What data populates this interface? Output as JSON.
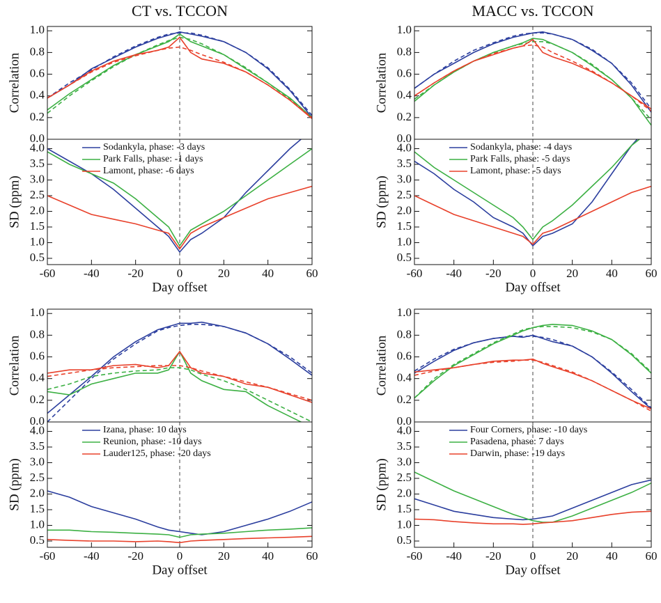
{
  "chart_data": [
    {
      "type": "line",
      "title": "CT vs. TCCON",
      "ylabel": "Correlation",
      "x": [
        -60,
        -50,
        -40,
        -30,
        -20,
        -10,
        -5,
        0,
        5,
        10,
        20,
        30,
        40,
        50,
        60
      ],
      "xlim": [
        -60,
        60
      ],
      "ylim": [
        0,
        1.04
      ],
      "yticks": [
        {
          "value": 0,
          "label": "0.0"
        },
        0.2,
        0.4,
        0.6,
        0.8,
        {
          "value": 1,
          "label": "1.0"
        }
      ],
      "series": [
        {
          "color": "#2b3e9e",
          "values": [
            0.38,
            0.5,
            0.65,
            0.75,
            0.85,
            0.93,
            0.96,
            0.99,
            0.97,
            0.95,
            0.9,
            0.8,
            0.65,
            0.45,
            0.2
          ]
        },
        {
          "color": "#2b3e9e",
          "dash": true,
          "values": [
            0.38,
            0.52,
            0.64,
            0.76,
            0.86,
            0.94,
            0.97,
            0.98,
            0.98,
            0.96,
            0.9,
            0.8,
            0.66,
            0.46,
            0.22
          ]
        },
        {
          "color": "#3cb043",
          "values": [
            0.27,
            0.42,
            0.55,
            0.68,
            0.78,
            0.86,
            0.9,
            0.97,
            0.9,
            0.86,
            0.78,
            0.65,
            0.52,
            0.38,
            0.2
          ]
        },
        {
          "color": "#3cb043",
          "dash": true,
          "values": [
            0.24,
            0.4,
            0.54,
            0.67,
            0.78,
            0.87,
            0.91,
            0.94,
            0.92,
            0.88,
            0.78,
            0.66,
            0.52,
            0.37,
            0.2
          ]
        },
        {
          "color": "#e8402a",
          "values": [
            0.38,
            0.5,
            0.63,
            0.72,
            0.78,
            0.82,
            0.85,
            0.94,
            0.8,
            0.74,
            0.7,
            0.62,
            0.5,
            0.36,
            0.19
          ]
        },
        {
          "color": "#e8402a",
          "dash": true,
          "values": [
            0.38,
            0.5,
            0.62,
            0.71,
            0.77,
            0.82,
            0.84,
            0.85,
            0.82,
            0.78,
            0.71,
            0.62,
            0.5,
            0.36,
            0.2
          ]
        }
      ]
    },
    {
      "type": "line",
      "ylabel": "SD (ppm)",
      "xlabel": "Day offset",
      "legend": "upper left",
      "x": [
        -60,
        -50,
        -40,
        -30,
        -20,
        -10,
        -5,
        0,
        5,
        10,
        20,
        30,
        40,
        50,
        60
      ],
      "xlim": [
        -60,
        60
      ],
      "xticks": [
        -60,
        -40,
        -20,
        0,
        20,
        40,
        60
      ],
      "ylim": [
        0.3,
        4.3
      ],
      "yticks": [
        0.5,
        {
          "value": 1,
          "label": "1.0"
        },
        1.5,
        {
          "value": 2,
          "label": "2.0"
        },
        2.5,
        {
          "value": 3,
          "label": "3.0"
        },
        3.5,
        {
          "value": 4,
          "label": "4.0"
        }
      ],
      "series": [
        {
          "name": "Sodankyla, phase: -3 days",
          "color": "#2b3e9e",
          "values": [
            4.0,
            3.6,
            3.2,
            2.7,
            2.1,
            1.5,
            1.2,
            0.7,
            1.1,
            1.3,
            1.8,
            2.6,
            3.3,
            4.0,
            4.6
          ]
        },
        {
          "name": "Park Falls, phase: -1 days",
          "color": "#3cb043",
          "values": [
            3.9,
            3.5,
            3.2,
            2.9,
            2.4,
            1.8,
            1.5,
            0.9,
            1.4,
            1.6,
            2.0,
            2.5,
            3.0,
            3.5,
            4.0
          ]
        },
        {
          "name": "Lamont, phase: -6 days",
          "color": "#e8402a",
          "values": [
            2.5,
            2.2,
            1.9,
            1.75,
            1.6,
            1.4,
            1.3,
            0.8,
            1.3,
            1.5,
            1.8,
            2.1,
            2.4,
            2.6,
            2.8
          ]
        }
      ]
    },
    {
      "type": "line",
      "title": "MACC vs. TCCON",
      "ylabel": "Correlation",
      "x": [
        -60,
        -50,
        -40,
        -30,
        -20,
        -10,
        -5,
        0,
        5,
        10,
        20,
        30,
        40,
        50,
        60
      ],
      "xlim": [
        -60,
        60
      ],
      "ylim": [
        0,
        1.04
      ],
      "yticks": [
        {
          "value": 0,
          "label": "0.0"
        },
        0.2,
        0.4,
        0.6,
        0.8,
        {
          "value": 1,
          "label": "1.0"
        }
      ],
      "series": [
        {
          "color": "#2b3e9e",
          "values": [
            0.47,
            0.6,
            0.7,
            0.8,
            0.88,
            0.94,
            0.96,
            0.98,
            0.99,
            0.97,
            0.92,
            0.82,
            0.7,
            0.5,
            0.25
          ]
        },
        {
          "color": "#2b3e9e",
          "dash": true,
          "values": [
            0.47,
            0.6,
            0.72,
            0.82,
            0.89,
            0.95,
            0.97,
            0.98,
            0.98,
            0.97,
            0.92,
            0.83,
            0.7,
            0.52,
            0.28
          ]
        },
        {
          "color": "#3cb043",
          "values": [
            0.35,
            0.5,
            0.62,
            0.72,
            0.8,
            0.86,
            0.89,
            0.93,
            0.92,
            0.88,
            0.8,
            0.68,
            0.55,
            0.38,
            0.13
          ]
        },
        {
          "color": "#3cb043",
          "dash": true,
          "values": [
            0.37,
            0.5,
            0.62,
            0.72,
            0.8,
            0.86,
            0.88,
            0.9,
            0.9,
            0.88,
            0.8,
            0.69,
            0.55,
            0.38,
            0.18
          ]
        },
        {
          "color": "#e8402a",
          "values": [
            0.4,
            0.52,
            0.63,
            0.72,
            0.78,
            0.84,
            0.86,
            0.92,
            0.8,
            0.76,
            0.7,
            0.62,
            0.52,
            0.4,
            0.28
          ]
        },
        {
          "color": "#e8402a",
          "dash": true,
          "values": [
            0.4,
            0.52,
            0.63,
            0.72,
            0.79,
            0.84,
            0.86,
            0.87,
            0.85,
            0.8,
            0.72,
            0.63,
            0.52,
            0.4,
            0.26
          ]
        }
      ]
    },
    {
      "type": "line",
      "ylabel": "SD (ppm)",
      "xlabel": "Day offset",
      "legend": "upper left",
      "x": [
        -60,
        -50,
        -40,
        -30,
        -20,
        -10,
        -5,
        0,
        5,
        10,
        20,
        30,
        40,
        50,
        60
      ],
      "xlim": [
        -60,
        60
      ],
      "xticks": [
        -60,
        -40,
        -20,
        0,
        20,
        40,
        60
      ],
      "ylim": [
        0.3,
        4.3
      ],
      "yticks": [
        0.5,
        {
          "value": 1,
          "label": "1.0"
        },
        1.5,
        {
          "value": 2,
          "label": "2.0"
        },
        2.5,
        {
          "value": 3,
          "label": "3.0"
        },
        3.5,
        {
          "value": 4,
          "label": "4.0"
        }
      ],
      "series": [
        {
          "name": "Sodankyla, phase: -4 days",
          "color": "#2b3e9e",
          "values": [
            3.6,
            3.2,
            2.7,
            2.3,
            1.8,
            1.5,
            1.3,
            0.9,
            1.2,
            1.3,
            1.6,
            2.3,
            3.2,
            4.1,
            4.8
          ]
        },
        {
          "name": "Park Falls, phase: -5 days",
          "color": "#3cb043",
          "values": [
            3.9,
            3.4,
            3.0,
            2.6,
            2.2,
            1.8,
            1.5,
            1.1,
            1.5,
            1.7,
            2.2,
            2.8,
            3.4,
            4.1,
            4.6
          ]
        },
        {
          "name": "Lamont, phase: -5 days",
          "color": "#e8402a",
          "values": [
            2.5,
            2.2,
            1.9,
            1.7,
            1.5,
            1.3,
            1.2,
            0.95,
            1.3,
            1.4,
            1.7,
            2.0,
            2.3,
            2.6,
            2.8
          ]
        }
      ]
    },
    {
      "type": "line",
      "ylabel": "Correlation",
      "x": [
        -60,
        -50,
        -40,
        -30,
        -20,
        -10,
        -5,
        0,
        5,
        10,
        20,
        30,
        40,
        50,
        60
      ],
      "xlim": [
        -60,
        60
      ],
      "ylim": [
        0,
        1.04
      ],
      "yticks": [
        {
          "value": 0,
          "label": "0.0"
        },
        0.2,
        0.4,
        0.6,
        0.8,
        {
          "value": 1,
          "label": "1.0"
        }
      ],
      "series": [
        {
          "color": "#2b3e9e",
          "values": [
            0.08,
            0.25,
            0.42,
            0.6,
            0.74,
            0.85,
            0.88,
            0.91,
            0.91,
            0.92,
            0.88,
            0.82,
            0.72,
            0.58,
            0.43
          ]
        },
        {
          "color": "#2b3e9e",
          "dash": true,
          "values": [
            0.0,
            0.2,
            0.4,
            0.58,
            0.72,
            0.84,
            0.87,
            0.89,
            0.9,
            0.9,
            0.88,
            0.82,
            0.72,
            0.6,
            0.45
          ]
        },
        {
          "color": "#3cb043",
          "values": [
            0.28,
            0.25,
            0.35,
            0.4,
            0.45,
            0.45,
            0.48,
            0.65,
            0.45,
            0.38,
            0.3,
            0.28,
            0.15,
            0.05,
            -0.05
          ]
        },
        {
          "color": "#3cb043",
          "dash": true,
          "values": [
            0.3,
            0.35,
            0.42,
            0.45,
            0.47,
            0.48,
            0.5,
            0.5,
            0.48,
            0.44,
            0.38,
            0.3,
            0.2,
            0.1,
            0.0
          ]
        },
        {
          "color": "#e8402a",
          "values": [
            0.45,
            0.48,
            0.48,
            0.52,
            0.53,
            0.5,
            0.52,
            0.65,
            0.5,
            0.45,
            0.42,
            0.35,
            0.32,
            0.25,
            0.18
          ]
        },
        {
          "color": "#e8402a",
          "dash": true,
          "values": [
            0.42,
            0.45,
            0.48,
            0.5,
            0.51,
            0.52,
            0.52,
            0.52,
            0.5,
            0.47,
            0.42,
            0.37,
            0.32,
            0.26,
            0.2
          ]
        }
      ]
    },
    {
      "type": "line",
      "ylabel": "SD (ppm)",
      "xlabel": "Day offset",
      "legend": "upper left",
      "x": [
        -60,
        -50,
        -40,
        -30,
        -20,
        -10,
        -5,
        0,
        5,
        10,
        20,
        30,
        40,
        50,
        60
      ],
      "xlim": [
        -60,
        60
      ],
      "xticks": [
        -60,
        -40,
        -20,
        0,
        20,
        40,
        60
      ],
      "ylim": [
        0.3,
        4.3
      ],
      "yticks": [
        0.5,
        {
          "value": 1,
          "label": "1.0"
        },
        1.5,
        {
          "value": 2,
          "label": "2.0"
        },
        2.5,
        {
          "value": 3,
          "label": "3.0"
        },
        3.5,
        {
          "value": 4,
          "label": "4.0"
        }
      ],
      "series": [
        {
          "name": "Izana, phase: 10 days",
          "color": "#2b3e9e",
          "values": [
            2.1,
            1.9,
            1.6,
            1.4,
            1.2,
            0.95,
            0.85,
            0.8,
            0.75,
            0.7,
            0.8,
            1.0,
            1.2,
            1.45,
            1.75
          ]
        },
        {
          "name": "Reunion, phase: -10 days",
          "color": "#3cb043",
          "values": [
            0.85,
            0.85,
            0.8,
            0.78,
            0.75,
            0.72,
            0.7,
            0.62,
            0.7,
            0.72,
            0.75,
            0.8,
            0.85,
            0.88,
            0.92
          ]
        },
        {
          "name": "Lauder125, phase: -20 days",
          "color": "#e8402a",
          "values": [
            0.55,
            0.52,
            0.5,
            0.5,
            0.48,
            0.5,
            0.48,
            0.45,
            0.5,
            0.52,
            0.55,
            0.58,
            0.6,
            0.62,
            0.65
          ]
        }
      ]
    },
    {
      "type": "line",
      "ylabel": "Correlation",
      "x": [
        -60,
        -50,
        -40,
        -30,
        -20,
        -10,
        -5,
        0,
        5,
        10,
        20,
        30,
        40,
        50,
        60
      ],
      "xlim": [
        -60,
        60
      ],
      "ylim": [
        0,
        1.04
      ],
      "yticks": [
        {
          "value": 0,
          "label": "0.0"
        },
        0.2,
        0.4,
        0.6,
        0.8,
        {
          "value": 1,
          "label": "1.0"
        }
      ],
      "series": [
        {
          "color": "#2b3e9e",
          "values": [
            0.45,
            0.56,
            0.66,
            0.73,
            0.77,
            0.79,
            0.78,
            0.8,
            0.77,
            0.74,
            0.7,
            0.6,
            0.45,
            0.28,
            0.12
          ]
        },
        {
          "color": "#2b3e9e",
          "dash": true,
          "values": [
            0.47,
            0.58,
            0.67,
            0.73,
            0.77,
            0.79,
            0.79,
            0.79,
            0.78,
            0.76,
            0.7,
            0.6,
            0.46,
            0.3,
            0.13
          ]
        },
        {
          "color": "#3cb043",
          "values": [
            0.22,
            0.38,
            0.52,
            0.62,
            0.72,
            0.8,
            0.84,
            0.87,
            0.89,
            0.9,
            0.89,
            0.84,
            0.76,
            0.62,
            0.45
          ]
        },
        {
          "color": "#3cb043",
          "dash": true,
          "values": [
            0.22,
            0.4,
            0.53,
            0.63,
            0.73,
            0.81,
            0.85,
            0.87,
            0.88,
            0.88,
            0.87,
            0.83,
            0.76,
            0.63,
            0.46
          ]
        },
        {
          "color": "#e8402a",
          "values": [
            0.46,
            0.48,
            0.5,
            0.53,
            0.56,
            0.57,
            0.57,
            0.58,
            0.54,
            0.51,
            0.45,
            0.38,
            0.29,
            0.2,
            0.12
          ]
        },
        {
          "color": "#e8402a",
          "dash": true,
          "values": [
            0.43,
            0.47,
            0.5,
            0.53,
            0.55,
            0.56,
            0.57,
            0.57,
            0.55,
            0.52,
            0.46,
            0.38,
            0.29,
            0.2,
            0.1
          ]
        }
      ]
    },
    {
      "type": "line",
      "ylabel": "SD (ppm)",
      "xlabel": "Day offset",
      "legend": "upper left",
      "x": [
        -60,
        -50,
        -40,
        -30,
        -20,
        -10,
        -5,
        0,
        5,
        10,
        20,
        30,
        40,
        50,
        60
      ],
      "xlim": [
        -60,
        60
      ],
      "xticks": [
        -60,
        -40,
        -20,
        0,
        20,
        40,
        60
      ],
      "ylim": [
        0.3,
        4.3
      ],
      "yticks": [
        0.5,
        {
          "value": 1,
          "label": "1.0"
        },
        1.5,
        {
          "value": 2,
          "label": "2.0"
        },
        2.5,
        {
          "value": 3,
          "label": "3.0"
        },
        3.5,
        {
          "value": 4,
          "label": "4.0"
        }
      ],
      "series": [
        {
          "name": "Four Corners, phase: -10 days",
          "color": "#2b3e9e",
          "values": [
            1.85,
            1.65,
            1.45,
            1.35,
            1.25,
            1.2,
            1.18,
            1.2,
            1.25,
            1.3,
            1.55,
            1.8,
            2.05,
            2.3,
            2.45
          ]
        },
        {
          "name": "Pasadena, phase: 7 days",
          "color": "#3cb043",
          "values": [
            2.7,
            2.4,
            2.1,
            1.85,
            1.6,
            1.35,
            1.25,
            1.15,
            1.1,
            1.1,
            1.3,
            1.55,
            1.8,
            2.05,
            2.35
          ]
        },
        {
          "name": "Darwin, phase: -19 days",
          "color": "#e8402a",
          "values": [
            1.2,
            1.18,
            1.12,
            1.08,
            1.05,
            1.05,
            1.03,
            1.05,
            1.08,
            1.1,
            1.15,
            1.25,
            1.35,
            1.42,
            1.45
          ]
        }
      ]
    }
  ]
}
